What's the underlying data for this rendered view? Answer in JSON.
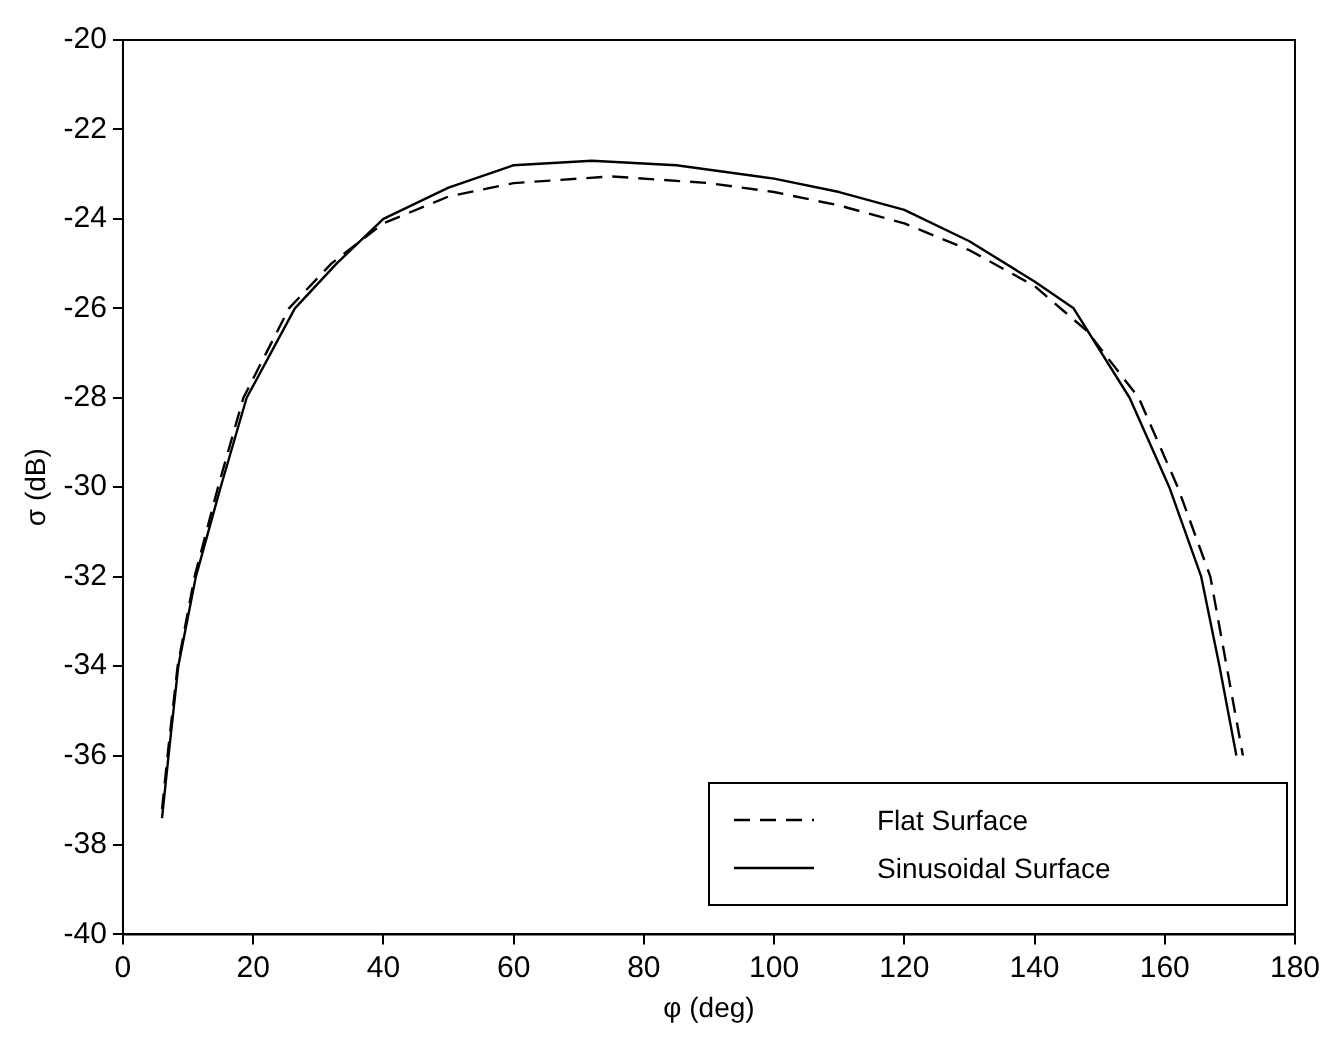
{
  "chart_data": {
    "type": "line",
    "xlabel": "φ (deg)",
    "ylabel": "σ (dB)",
    "xlim": [
      0,
      180
    ],
    "xticks": [
      0,
      20,
      40,
      60,
      80,
      100,
      120,
      140,
      160,
      180
    ],
    "ylim": [
      -40,
      -20
    ],
    "yticks": [
      -40,
      -38,
      -36,
      -34,
      -32,
      -30,
      -28,
      -26,
      -24,
      -22,
      -20
    ],
    "grid": false,
    "legend": "bottom right",
    "marker": "none",
    "series": [
      {
        "name": "Flat Surface",
        "color": "#000000",
        "line_style": "dashed",
        "x": [
          6,
          7,
          8.4,
          11,
          14.6,
          18.5,
          25.5,
          32,
          40,
          50,
          60,
          75,
          90,
          100,
          110,
          120,
          130,
          140,
          148,
          156,
          162,
          167,
          169.5,
          172
        ],
        "values": [
          -37.2,
          -35.8,
          -34,
          -32,
          -30,
          -28,
          -26,
          -25,
          -24.1,
          -23.5,
          -23.2,
          -23.05,
          -23.2,
          -23.4,
          -23.7,
          -24.1,
          -24.7,
          -25.5,
          -26.5,
          -28,
          -30,
          -32,
          -34,
          -36
        ]
      },
      {
        "name": "Sinusoidal Surface",
        "color": "#000000",
        "line_style": "solid",
        "x": [
          6,
          7,
          8.5,
          11.2,
          15,
          19,
          26.4,
          32.8,
          40,
          50,
          60,
          72,
          85,
          100,
          110,
          120,
          130,
          140,
          146,
          154.6,
          160.7,
          165.6,
          168.4,
          171
        ],
        "values": [
          -37.4,
          -36,
          -34,
          -32,
          -30,
          -28,
          -26,
          -25,
          -24,
          -23.3,
          -22.8,
          -22.7,
          -22.8,
          -23.1,
          -23.4,
          -23.8,
          -24.5,
          -25.4,
          -26,
          -28,
          -30,
          -32,
          -34,
          -36
        ]
      }
    ]
  }
}
